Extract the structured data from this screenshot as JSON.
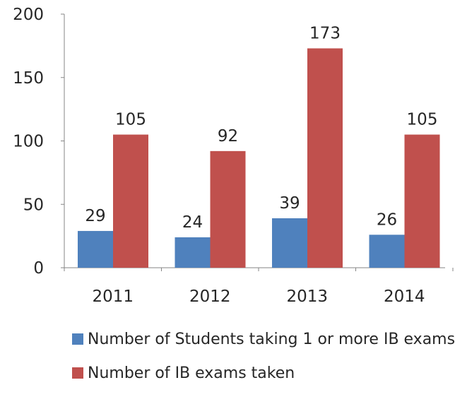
{
  "chart_data": {
    "type": "bar",
    "categories": [
      "2011",
      "2012",
      "2013",
      "2014"
    ],
    "series": [
      {
        "name": "Number of Students taking 1 or more IB exams",
        "values": [
          29,
          24,
          39,
          26
        ],
        "color": "#4F81BD"
      },
      {
        "name": "Number of IB exams taken",
        "values": [
          105,
          92,
          173,
          105
        ],
        "color": "#C0504D"
      }
    ],
    "ylim": [
      0,
      200
    ],
    "yticks": [
      "0",
      "50",
      "100",
      "150",
      "200"
    ],
    "grid": false,
    "legend_position": "bottom",
    "data_labels": true
  }
}
